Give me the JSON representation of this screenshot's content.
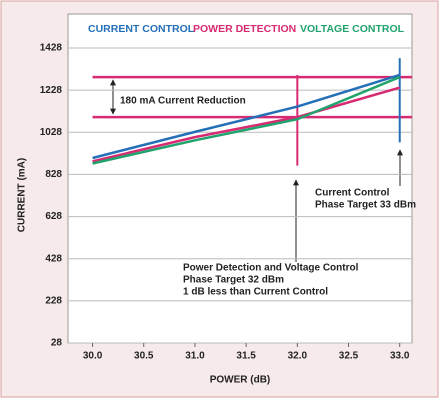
{
  "chart_data": {
    "type": "line",
    "legend": "top",
    "xlabel": "POWER (dB)",
    "ylabel": "CURRENT (mA)",
    "xlim": [
      29.76,
      33.12
    ],
    "ylim": [
      28,
      1428
    ],
    "xticks": [
      {
        "value": 30,
        "label": "30.0"
      },
      30.5,
      {
        "value": 31,
        "label": "31.0"
      },
      31.5,
      {
        "value": 32,
        "label": "32.0"
      },
      32.5,
      {
        "value": 33,
        "label": "33.0"
      }
    ],
    "yticks": [
      28,
      228,
      428,
      628,
      828,
      1028,
      1228,
      1428
    ],
    "grid": true,
    "series": [
      {
        "name": "CURRENT CONTROL",
        "color": "#2470b8",
        "x": [
          30.0,
          31.0,
          32.0,
          33.0
        ],
        "values": [
          906,
          1030,
          1150,
          1300
        ]
      },
      {
        "name": "POWER DETECTION",
        "color": "#d62a72",
        "x": [
          30.0,
          31.0,
          32.0,
          33.0
        ],
        "values": [
          890,
          1005,
          1100,
          1240
        ]
      },
      {
        "name": "VOLTAGE CONTROL",
        "color": "#21a36d",
        "x": [
          30.0,
          31.0,
          32.0,
          33.0
        ],
        "values": [
          880,
          990,
          1090,
          1290
        ]
      }
    ],
    "hlines": [
      {
        "value": 1290,
        "xrange": [
          30.0,
          33.12
        ],
        "color": "#d62a72"
      },
      {
        "value": 1100,
        "xrange": [
          30.0,
          33.12
        ],
        "color": "#d62a72"
      }
    ],
    "vlines": [
      {
        "x": 32.0,
        "yrange": [
          870,
          1300
        ],
        "color": "#d62a72"
      },
      {
        "x": 33.0,
        "yrange": [
          980,
          1380
        ],
        "color": "#2470b8"
      }
    ],
    "annotations": [
      {
        "text": [
          "180 mA Current Reduction"
        ]
      },
      {
        "text": [
          "Current Control",
          "Phase Target 33 dBm"
        ]
      },
      {
        "text": [
          "Power Detection and Voltage Control",
          "Phase Target 32 dBm",
          "1 dB less than Current Control"
        ]
      }
    ]
  }
}
